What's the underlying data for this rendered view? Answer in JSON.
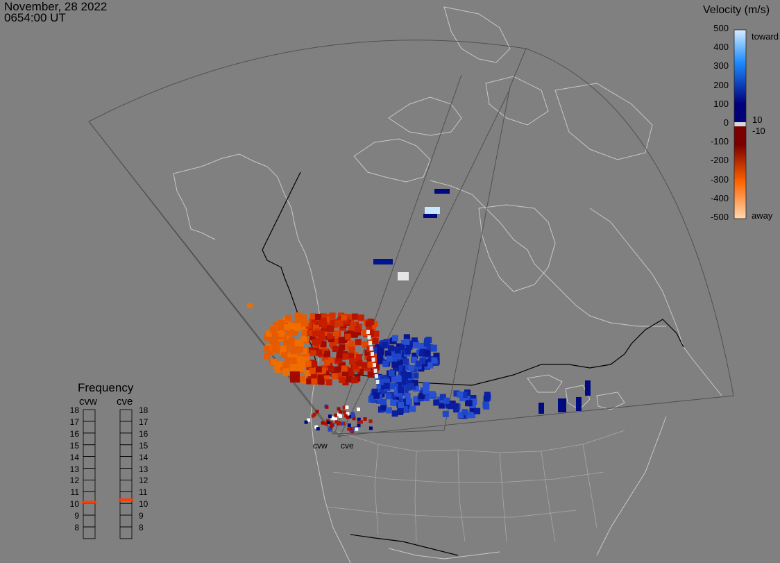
{
  "header": {
    "date": "November, 28 2022",
    "time": "0654:00 UT"
  },
  "colorbar": {
    "title": "Velocity (m/s)",
    "ticks": [
      "500",
      "400",
      "300",
      "200",
      "100",
      "0",
      "-100",
      "-200",
      "-300",
      "-400",
      "-500"
    ],
    "side_labels": [
      "toward",
      "10",
      "-10",
      "away"
    ],
    "colors": {
      "toward_light": "#d8ecff",
      "toward_mid": "#1e8cff",
      "toward_dark": "#00007a",
      "away_dark": "#7a0000",
      "away_mid": "#ff6400",
      "away_light": "#ffd8b0"
    }
  },
  "frequency": {
    "title": "Frequency",
    "radars": [
      "cvw",
      "cve"
    ],
    "levels": [
      "18",
      "17",
      "16",
      "15",
      "14",
      "13",
      "12",
      "11",
      "10",
      "9",
      "8"
    ],
    "values_mhz": {
      "cvw": 10.6,
      "cve": 10.8
    },
    "marker_color": "#ff3c00"
  },
  "sites": [
    {
      "name": "cvw"
    },
    {
      "name": "cve"
    }
  ],
  "map_colors": {
    "background": "#808080",
    "coastline": "#c8c8c8",
    "border": "#000000",
    "fov": "#505050"
  }
}
